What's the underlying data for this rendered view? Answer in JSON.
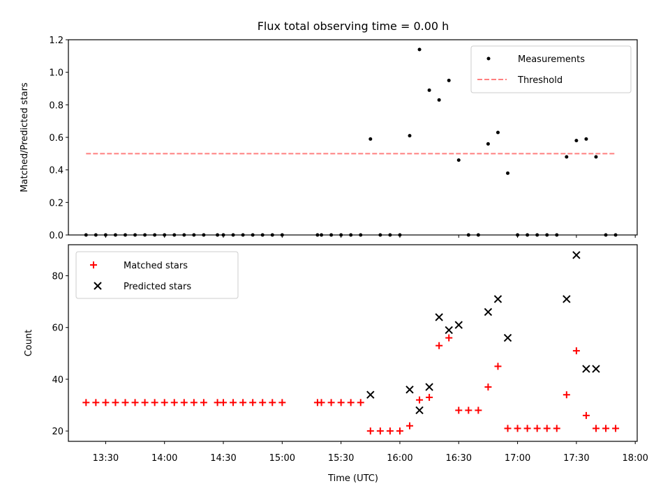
{
  "chart_data": [
    {
      "type": "scatter",
      "title": "Flux total observing time = 0.00 h",
      "ylabel": "Matched/Predicted stars",
      "xlim": [
        "13:11",
        "18:01"
      ],
      "ylim": [
        0,
        1.2
      ],
      "yticks": [
        "0.0",
        "0.2",
        "0.4",
        "0.6",
        "0.8",
        "1.0",
        "1.2"
      ],
      "legend": {
        "placement": "top-right",
        "entries": [
          "Measurements",
          "Threshold"
        ]
      },
      "threshold": {
        "value": 0.5,
        "x_start": "13:20",
        "x_end": "17:50",
        "color": "#ff8080"
      },
      "series": [
        {
          "name": "Measurements",
          "color": "#000000",
          "x": [
            "13:20",
            "13:25",
            "13:30",
            "13:35",
            "13:40",
            "13:45",
            "13:50",
            "13:55",
            "14:00",
            "14:05",
            "14:10",
            "14:15",
            "14:20",
            "14:27",
            "14:30",
            "14:35",
            "14:40",
            "14:45",
            "14:50",
            "14:55",
            "15:00",
            "15:18",
            "15:20",
            "15:25",
            "15:30",
            "15:35",
            "15:40",
            "15:45",
            "15:50",
            "15:55",
            "16:00",
            "16:05",
            "16:10",
            "16:15",
            "16:20",
            "16:25",
            "16:30",
            "16:35",
            "16:40",
            "16:45",
            "16:50",
            "16:55",
            "17:00",
            "17:05",
            "17:10",
            "17:15",
            "17:20",
            "17:25",
            "17:30",
            "17:35",
            "17:40",
            "17:45",
            "17:50"
          ],
          "y": [
            0,
            0,
            0,
            0,
            0,
            0,
            0,
            0,
            0,
            0,
            0,
            0,
            0,
            0,
            0,
            0,
            0,
            0,
            0,
            0,
            0,
            0,
            0,
            0,
            0,
            0,
            0,
            0.59,
            0,
            0,
            0,
            0.61,
            1.14,
            0.89,
            0.83,
            0.95,
            0.46,
            0,
            0,
            0.56,
            0.63,
            0.38,
            0,
            0,
            0,
            0,
            0,
            0.48,
            0.58,
            0.59,
            0.48,
            0,
            0
          ]
        }
      ]
    },
    {
      "type": "scatter",
      "xlabel": "Time (UTC)",
      "ylabel": "Count",
      "xlim": [
        "13:11",
        "18:01"
      ],
      "ylim": [
        16,
        92
      ],
      "xticks": [
        "13:30",
        "14:00",
        "14:30",
        "15:00",
        "15:30",
        "16:00",
        "16:30",
        "17:00",
        "17:30",
        "18:00"
      ],
      "yticks": [
        "20",
        "40",
        "60",
        "80"
      ],
      "legend": {
        "placement": "top-left",
        "entries": [
          "Matched stars",
          "Predicted stars"
        ]
      },
      "series": [
        {
          "name": "Matched stars",
          "marker": "plus",
          "color": "#ff0000",
          "x": [
            "13:20",
            "13:25",
            "13:30",
            "13:35",
            "13:40",
            "13:45",
            "13:50",
            "13:55",
            "14:00",
            "14:05",
            "14:10",
            "14:15",
            "14:20",
            "14:27",
            "14:30",
            "14:35",
            "14:40",
            "14:45",
            "14:50",
            "14:55",
            "15:00",
            "15:18",
            "15:20",
            "15:25",
            "15:30",
            "15:35",
            "15:40",
            "15:45",
            "15:50",
            "15:55",
            "16:00",
            "16:05",
            "16:10",
            "16:15",
            "16:20",
            "16:25",
            "16:30",
            "16:35",
            "16:40",
            "16:45",
            "16:50",
            "16:55",
            "17:00",
            "17:05",
            "17:10",
            "17:15",
            "17:20",
            "17:25",
            "17:30",
            "17:35",
            "17:40",
            "17:45",
            "17:50"
          ],
          "y": [
            31,
            31,
            31,
            31,
            31,
            31,
            31,
            31,
            31,
            31,
            31,
            31,
            31,
            31,
            31,
            31,
            31,
            31,
            31,
            31,
            31,
            31,
            31,
            31,
            31,
            31,
            31,
            20,
            20,
            20,
            20,
            22,
            32,
            33,
            53,
            56,
            28,
            28,
            28,
            37,
            45,
            21,
            21,
            21,
            21,
            21,
            21,
            34,
            51,
            26,
            21,
            21,
            21
          ]
        },
        {
          "name": "Predicted stars",
          "marker": "x",
          "color": "#000000",
          "x": [
            "15:45",
            "16:05",
            "16:10",
            "16:15",
            "16:20",
            "16:25",
            "16:30",
            "16:45",
            "16:50",
            "16:55",
            "17:25",
            "17:30",
            "17:35",
            "17:40"
          ],
          "y": [
            34,
            36,
            28,
            37,
            64,
            59,
            61,
            66,
            71,
            56,
            71,
            88,
            44,
            44
          ]
        }
      ]
    }
  ]
}
